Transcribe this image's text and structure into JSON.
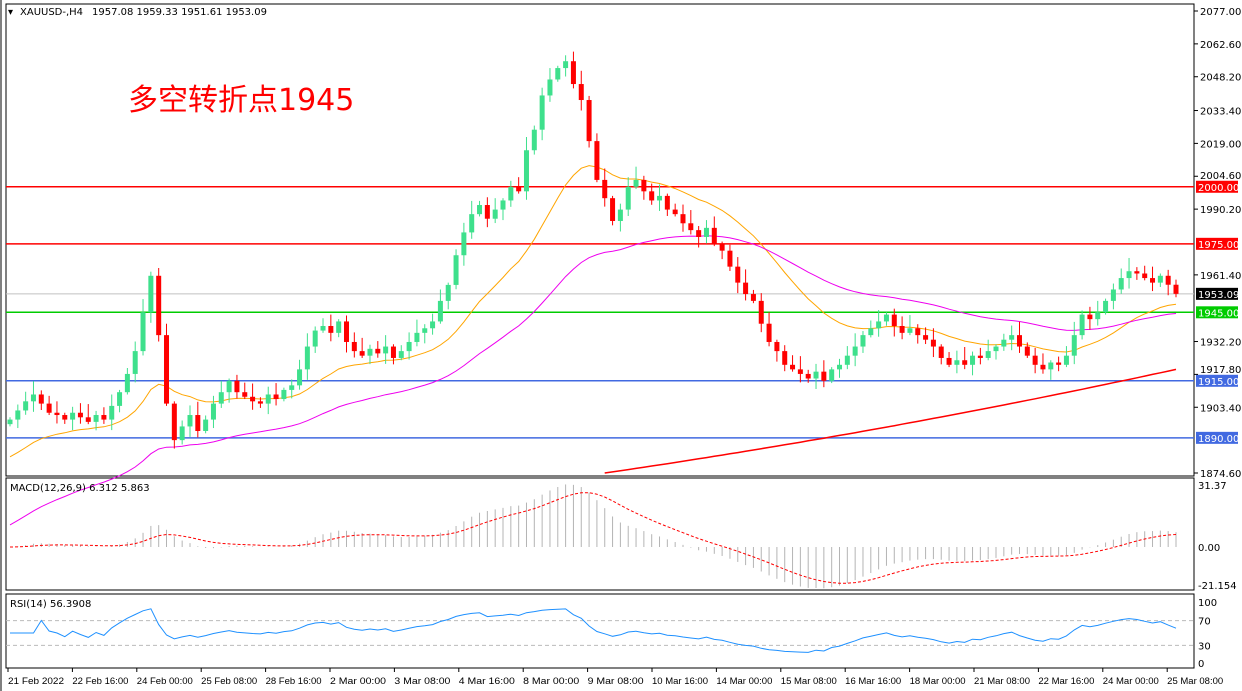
{
  "header": {
    "symbol": "XAUUSD-,H4",
    "ohlc": "1957.08 1959.33 1951.61 1953.09"
  },
  "annotation": "多空转折点1945",
  "colors": {
    "bull": "#3ee08c",
    "bear": "#ff0000",
    "ma_fast": "#ffa500",
    "ma_mid": "#ee00ee",
    "ma_slow": "#ff0000",
    "resistance": "#ff0000",
    "pivot": "#00cc00",
    "support": "#4169e1",
    "rsi": "#1e90ff",
    "macd_hist": "#b4b4b4",
    "macd_signal": "#ff0000",
    "current": "#000000"
  },
  "chart_data": [
    {
      "type": "candlestick",
      "title": "XAUUSD-,H4",
      "ylim": [
        1874.6,
        2077.0
      ],
      "y_ticks": [
        "2077.00",
        "2062.60",
        "2048.20",
        "2033.40",
        "2019.00",
        "2004.60",
        "1990.20",
        "1961.40",
        "1932.20",
        "1917.80",
        "1903.40",
        "1874.60"
      ],
      "x_ticks": [
        "21 Feb 2022",
        "22 Feb 16:00",
        "24 Feb 00:00",
        "25 Feb 08:00",
        "28 Feb 16:00",
        "2 Mar 00:00",
        "3 Mar 08:00",
        "4 Mar 16:00",
        "8 Mar 00:00",
        "9 Mar 08:00",
        "10 Mar 16:00",
        "14 Mar 00:00",
        "15 Mar 08:00",
        "16 Mar 16:00",
        "18 Mar 00:00",
        "21 Mar 08:00",
        "22 Mar 16:00",
        "24 Mar 00:00",
        "25 Mar 08:00"
      ],
      "last": {
        "open": 1957.08,
        "high": 1959.33,
        "low": 1951.61,
        "close": 1953.09,
        "label": "1953.09"
      },
      "closes": [
        1898,
        1902,
        1906,
        1909,
        1905,
        1901,
        1900,
        1898,
        1901,
        1899,
        1897,
        1900,
        1898,
        1904,
        1910,
        1918,
        1928,
        1945,
        1961,
        1935,
        1905,
        1889,
        1895,
        1900,
        1893,
        1898,
        1905,
        1910,
        1915,
        1910,
        1908,
        1906,
        1905,
        1909,
        1907,
        1911,
        1913,
        1920,
        1930,
        1937,
        1939,
        1936,
        1941,
        1932,
        1928,
        1926,
        1929,
        1927,
        1930,
        1925,
        1928,
        1932,
        1936,
        1938,
        1941,
        1950,
        1957,
        1970,
        1980,
        1988,
        1992,
        1986,
        1990,
        1994,
        2000,
        1998,
        2016,
        2025,
        2040,
        2047,
        2052,
        2055,
        2045,
        2038,
        2020,
        2003,
        1995,
        1985,
        1990,
        2000,
        2003,
        1998,
        1994,
        1996,
        1990,
        1988,
        1984,
        1981,
        1978,
        1982,
        1975,
        1972,
        1965,
        1958,
        1953,
        1950,
        1940,
        1932,
        1928,
        1922,
        1920,
        1918,
        1916,
        1919,
        1915,
        1920,
        1922,
        1926,
        1930,
        1935,
        1938,
        1941,
        1944,
        1939,
        1936,
        1938,
        1935,
        1933,
        1930,
        1925,
        1922,
        1924,
        1922,
        1926,
        1925,
        1928,
        1930,
        1933,
        1935,
        1930,
        1926,
        1922,
        1920,
        1923,
        1922,
        1926,
        1935,
        1944,
        1942,
        1945,
        1950,
        1955,
        1960,
        1963,
        1962,
        1960,
        1958,
        1961,
        1957.08,
        1953.09
      ],
      "ma_slow_range": [
        1874.6,
        1920.0
      ],
      "levels": [
        {
          "value": 2000.0,
          "label": "2000.00",
          "kind": "resistance"
        },
        {
          "value": 1975.0,
          "label": "1975.00",
          "kind": "resistance"
        },
        {
          "value": 1945.0,
          "label": "1945.00",
          "kind": "pivot"
        },
        {
          "value": 1915.0,
          "label": "1915.00",
          "kind": "support"
        },
        {
          "value": 1890.0,
          "label": "1890.00",
          "kind": "support"
        }
      ]
    },
    {
      "type": "bar+line",
      "title": "MACD(12,26,9) 6.312 5.863",
      "ylim": [
        -21.154,
        31.37
      ],
      "y_ticks": [
        "31.37",
        "0.00",
        "-21.154"
      ],
      "params": [
        12,
        26,
        9
      ]
    },
    {
      "type": "line",
      "title": "RSI(14) 56.3908",
      "ylim": [
        0,
        100
      ],
      "y_ticks": [
        "100",
        "70",
        "30",
        "0"
      ],
      "levels": [
        70,
        30
      ],
      "period": 14
    }
  ]
}
